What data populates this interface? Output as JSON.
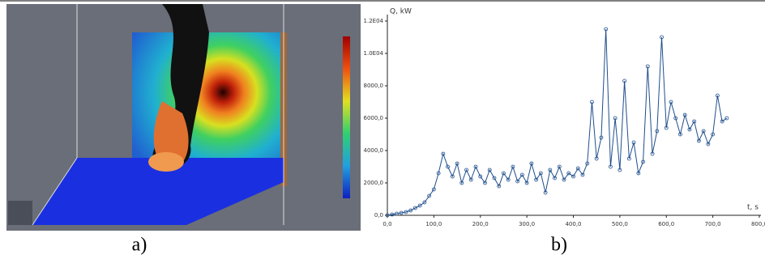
{
  "captions": {
    "a": "a)",
    "b": "b)"
  },
  "chart_data": {
    "type": "line",
    "y_label": "Q, kW",
    "x_label": "t, s",
    "x": [
      0,
      10,
      20,
      30,
      40,
      50,
      60,
      70,
      80,
      90,
      100,
      110,
      120,
      130,
      140,
      150,
      160,
      170,
      180,
      190,
      200,
      210,
      220,
      230,
      240,
      250,
      260,
      270,
      280,
      290,
      300,
      310,
      320,
      330,
      340,
      350,
      360,
      370,
      380,
      390,
      400,
      410,
      420,
      430,
      440,
      450,
      460,
      470,
      480,
      490,
      500,
      510,
      520,
      530,
      540,
      550,
      560,
      570,
      580,
      590,
      600,
      610,
      620,
      630,
      640,
      650,
      660,
      670,
      680,
      690,
      700,
      710,
      720,
      730
    ],
    "series": [
      {
        "color": "#1f4e8c",
        "values": [
          0,
          50,
          100,
          150,
          200,
          300,
          450,
          600,
          800,
          1200,
          1600,
          2600,
          3800,
          3000,
          2400,
          3200,
          2000,
          2800,
          2200,
          3000,
          2400,
          2000,
          2800,
          2300,
          1800,
          2600,
          2200,
          3000,
          2100,
          2500,
          2000,
          3200,
          2200,
          2600,
          1400,
          2800,
          2300,
          3000,
          2200,
          2600,
          2400,
          2900,
          2500,
          3200,
          7000,
          3500,
          4800,
          11500,
          3000,
          6000,
          2800,
          8300,
          3500,
          4500,
          2600,
          3300,
          9200,
          3800,
          5200,
          11000,
          5400,
          7000,
          6000,
          5000,
          6200,
          5300,
          5800,
          4600,
          5200,
          4400,
          5000,
          7400,
          5800,
          6000
        ]
      }
    ],
    "xlim": [
      0,
      800
    ],
    "xticks": [
      {
        "value": 0,
        "label": "0,0"
      },
      {
        "value": 100,
        "label": "100,0"
      },
      {
        "value": 200,
        "label": "200,0"
      },
      {
        "value": 300,
        "label": "300,0"
      },
      {
        "value": 400,
        "label": "400,0"
      },
      {
        "value": 500,
        "label": "500,0"
      },
      {
        "value": 600,
        "label": "600,0"
      },
      {
        "value": 700,
        "label": "700,0"
      },
      {
        "value": 800,
        "label": "800,0"
      }
    ],
    "ylim": [
      0,
      12000
    ],
    "yticks": [
      {
        "value": 0,
        "label": "0,0"
      },
      {
        "value": 2000,
        "label": "2000,0"
      },
      {
        "value": 4000,
        "label": "4000,0"
      },
      {
        "value": 6000,
        "label": "6000,0"
      },
      {
        "value": 8000,
        "label": "8000,0"
      },
      {
        "value": 10000,
        "label": "1.0E04"
      },
      {
        "value": 12000,
        "label": "1.2E04"
      }
    ]
  }
}
